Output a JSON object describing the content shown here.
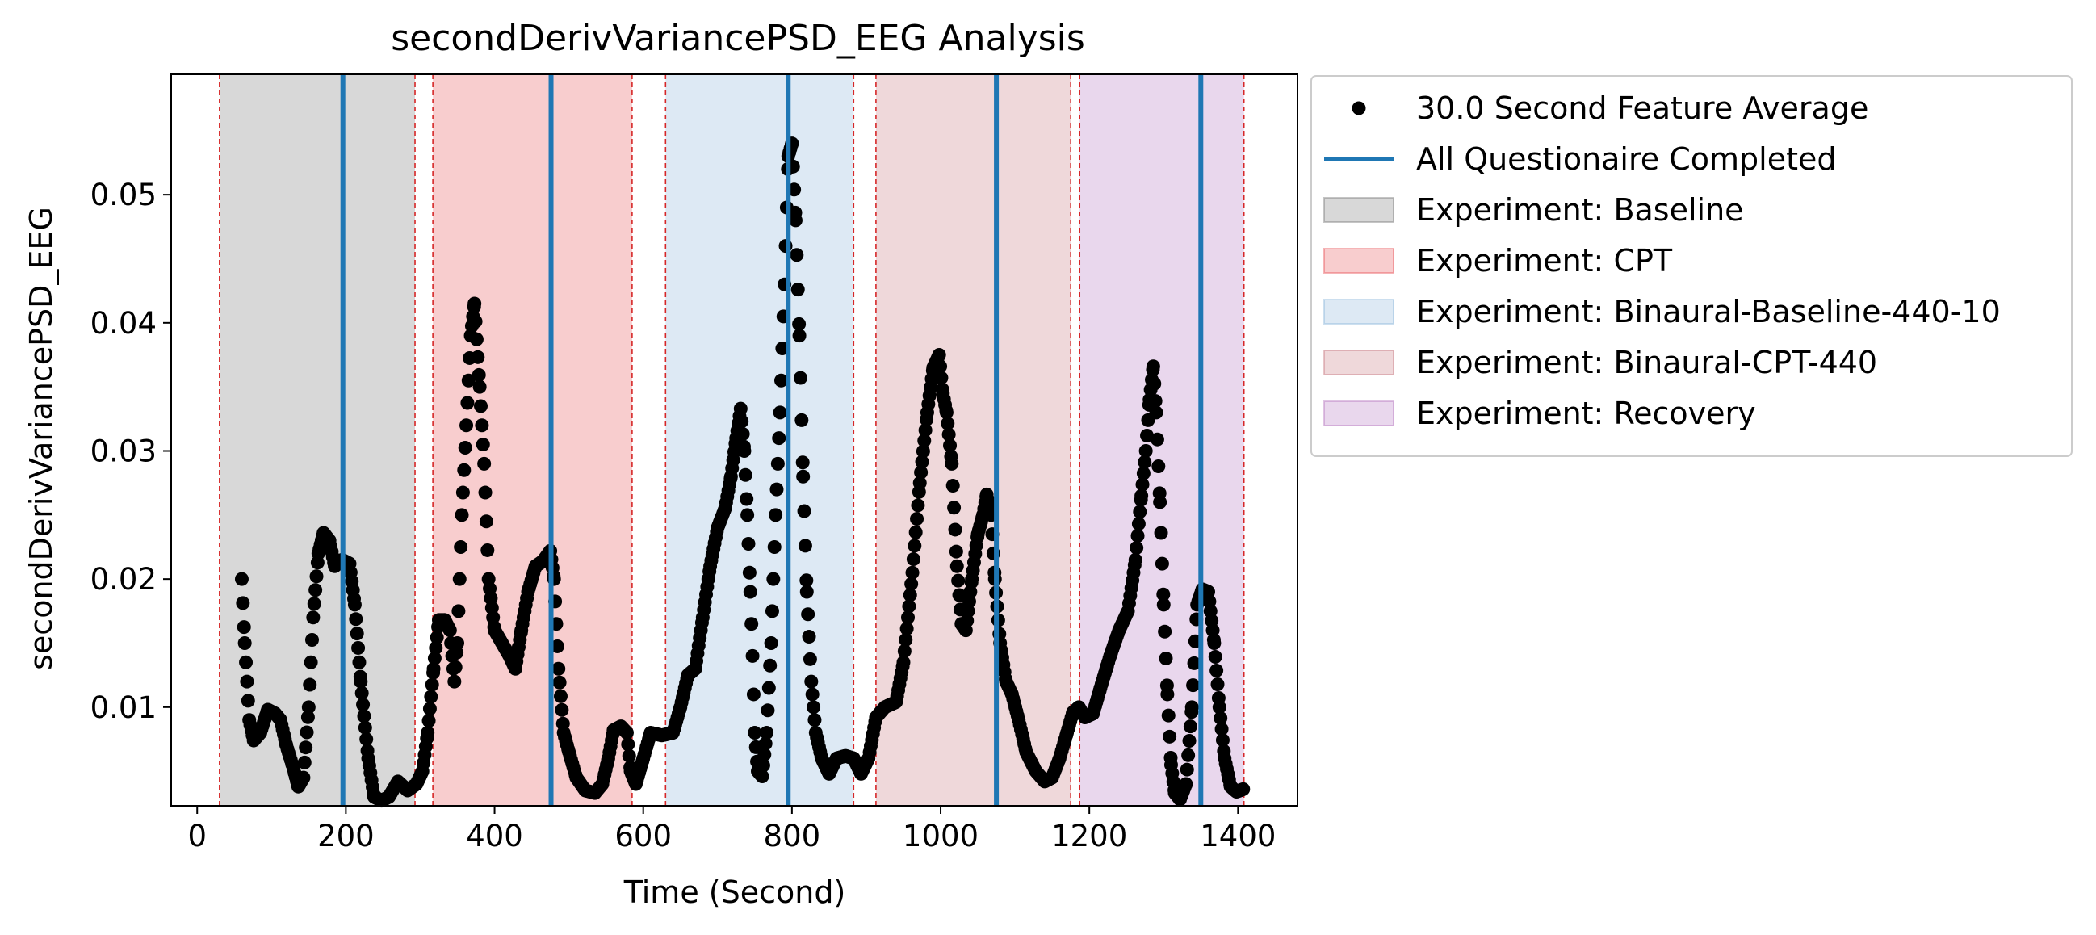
{
  "chart_data": {
    "type": "scatter",
    "title": "secondDerivVariancePSD_EEG Analysis",
    "xlabel": "Time (Second)",
    "ylabel": "secondDerivVariancePSD_EEG",
    "xlim": [
      -35,
      1480
    ],
    "ylim": [
      0.0023,
      0.0594
    ],
    "x_ticks": [
      0,
      200,
      400,
      600,
      800,
      1000,
      1200,
      1400
    ],
    "x_tick_labels": [
      "0",
      "200",
      "400",
      "600",
      "800",
      "1000",
      "1200",
      "1400"
    ],
    "y_ticks": [
      0.01,
      0.02,
      0.03,
      0.04,
      0.05
    ],
    "y_tick_labels": [
      "0.01",
      "0.02",
      "0.03",
      "0.04",
      "0.05"
    ],
    "grid": false,
    "legend_placement": "outside-upper-right",
    "legend": [
      {
        "label": "30.0 Second Feature Average",
        "kind": "marker",
        "color": "#000000"
      },
      {
        "label": "All Questionaire Completed",
        "kind": "line",
        "color": "#1f77b4"
      },
      {
        "label": "Experiment: Baseline",
        "kind": "patch",
        "color": "#7f7f7f"
      },
      {
        "label": "Experiment: CPT",
        "kind": "patch",
        "color": "#e8585d"
      },
      {
        "label": "Experiment: Binaural-Baseline-440-10",
        "kind": "patch",
        "color": "#8fb7dc"
      },
      {
        "label": "Experiment: Binaural-CPT-440",
        "kind": "patch",
        "color": "#c97f85"
      },
      {
        "label": "Experiment: Recovery",
        "kind": "patch",
        "color": "#b779c2"
      }
    ],
    "phases": [
      {
        "name": "Experiment: Baseline",
        "start": 30,
        "end": 293,
        "color": "#7f7f7f"
      },
      {
        "name": "Experiment: CPT",
        "start": 317,
        "end": 585,
        "color": "#e8585d"
      },
      {
        "name": "Experiment: Binaural-Baseline-440-10",
        "start": 630,
        "end": 883,
        "color": "#8fb7dc"
      },
      {
        "name": "Experiment: Binaural-CPT-440",
        "start": 913,
        "end": 1175,
        "color": "#c97f85"
      },
      {
        "name": "Experiment: Recovery",
        "start": 1187,
        "end": 1408,
        "color": "#b779c2"
      }
    ],
    "questionnaire_completed": [
      196,
      476,
      795,
      1075,
      1350
    ],
    "feature_average_anchors": [
      [
        60,
        0.02
      ],
      [
        64,
        0.015
      ],
      [
        70,
        0.009
      ],
      [
        76,
        0.0074
      ],
      [
        85,
        0.008
      ],
      [
        95,
        0.0098
      ],
      [
        105,
        0.0095
      ],
      [
        112,
        0.009
      ],
      [
        120,
        0.007
      ],
      [
        128,
        0.0055
      ],
      [
        136,
        0.0038
      ],
      [
        143,
        0.0045
      ],
      [
        150,
        0.01
      ],
      [
        156,
        0.017
      ],
      [
        163,
        0.022
      ],
      [
        170,
        0.0236
      ],
      [
        178,
        0.023
      ],
      [
        185,
        0.021
      ],
      [
        195,
        0.0215
      ],
      [
        205,
        0.0212
      ],
      [
        212,
        0.018
      ],
      [
        220,
        0.012
      ],
      [
        230,
        0.006
      ],
      [
        238,
        0.003
      ],
      [
        248,
        0.0027
      ],
      [
        258,
        0.003
      ],
      [
        270,
        0.0042
      ],
      [
        283,
        0.0035
      ],
      [
        295,
        0.004
      ],
      [
        303,
        0.005
      ],
      [
        310,
        0.008
      ],
      [
        318,
        0.013
      ],
      [
        325,
        0.0168
      ],
      [
        333,
        0.0168
      ],
      [
        340,
        0.016
      ],
      [
        346,
        0.012
      ],
      [
        350,
        0.015
      ],
      [
        356,
        0.025
      ],
      [
        362,
        0.032
      ],
      [
        368,
        0.039
      ],
      [
        373,
        0.0415
      ],
      [
        380,
        0.035
      ],
      [
        386,
        0.029
      ],
      [
        392,
        0.02
      ],
      [
        400,
        0.016
      ],
      [
        410,
        0.015
      ],
      [
        420,
        0.014
      ],
      [
        428,
        0.013
      ],
      [
        436,
        0.016
      ],
      [
        445,
        0.019
      ],
      [
        455,
        0.021
      ],
      [
        465,
        0.0214
      ],
      [
        475,
        0.0222
      ],
      [
        480,
        0.02
      ],
      [
        486,
        0.013
      ],
      [
        493,
        0.008
      ],
      [
        500,
        0.0065
      ],
      [
        510,
        0.0045
      ],
      [
        522,
        0.0035
      ],
      [
        535,
        0.0033
      ],
      [
        545,
        0.004
      ],
      [
        553,
        0.006
      ],
      [
        560,
        0.0082
      ],
      [
        570,
        0.0085
      ],
      [
        578,
        0.008
      ],
      [
        583,
        0.005
      ],
      [
        590,
        0.004
      ],
      [
        600,
        0.006
      ],
      [
        610,
        0.008
      ],
      [
        625,
        0.0078
      ],
      [
        640,
        0.008
      ],
      [
        650,
        0.01
      ],
      [
        660,
        0.0125
      ],
      [
        670,
        0.013
      ],
      [
        680,
        0.017
      ],
      [
        690,
        0.021
      ],
      [
        700,
        0.024
      ],
      [
        710,
        0.0255
      ],
      [
        718,
        0.028
      ],
      [
        725,
        0.031
      ],
      [
        731,
        0.0333
      ],
      [
        736,
        0.03
      ],
      [
        740,
        0.025
      ],
      [
        744,
        0.019
      ],
      [
        747,
        0.014
      ],
      [
        750,
        0.008
      ],
      [
        754,
        0.005
      ],
      [
        760,
        0.0046
      ],
      [
        766,
        0.008
      ],
      [
        772,
        0.015
      ],
      [
        778,
        0.025
      ],
      [
        784,
        0.033
      ],
      [
        790,
        0.043
      ],
      [
        795,
        0.053
      ],
      [
        800,
        0.054
      ],
      [
        805,
        0.048
      ],
      [
        810,
        0.039
      ],
      [
        815,
        0.028
      ],
      [
        820,
        0.019
      ],
      [
        826,
        0.012
      ],
      [
        832,
        0.008
      ],
      [
        840,
        0.006
      ],
      [
        850,
        0.0048
      ],
      [
        860,
        0.006
      ],
      [
        872,
        0.0062
      ],
      [
        883,
        0.006
      ],
      [
        893,
        0.0048
      ],
      [
        903,
        0.006
      ],
      [
        913,
        0.0092
      ],
      [
        925,
        0.01
      ],
      [
        940,
        0.0104
      ],
      [
        950,
        0.0135
      ],
      [
        962,
        0.0205
      ],
      [
        972,
        0.0275
      ],
      [
        982,
        0.033
      ],
      [
        990,
        0.0365
      ],
      [
        998,
        0.0375
      ],
      [
        1003,
        0.0345
      ],
      [
        1008,
        0.033
      ],
      [
        1015,
        0.029
      ],
      [
        1022,
        0.021
      ],
      [
        1028,
        0.0165
      ],
      [
        1034,
        0.016
      ],
      [
        1042,
        0.02
      ],
      [
        1050,
        0.0235
      ],
      [
        1057,
        0.025
      ],
      [
        1062,
        0.0266
      ],
      [
        1068,
        0.025
      ],
      [
        1073,
        0.02
      ],
      [
        1080,
        0.015
      ],
      [
        1088,
        0.012
      ],
      [
        1096,
        0.011
      ],
      [
        1105,
        0.009
      ],
      [
        1115,
        0.0065
      ],
      [
        1128,
        0.005
      ],
      [
        1140,
        0.0042
      ],
      [
        1150,
        0.0045
      ],
      [
        1160,
        0.006
      ],
      [
        1170,
        0.008
      ],
      [
        1178,
        0.0096
      ],
      [
        1186,
        0.01
      ],
      [
        1194,
        0.0092
      ],
      [
        1205,
        0.0095
      ],
      [
        1215,
        0.0115
      ],
      [
        1228,
        0.014
      ],
      [
        1240,
        0.016
      ],
      [
        1252,
        0.0175
      ],
      [
        1262,
        0.0215
      ],
      [
        1270,
        0.0265
      ],
      [
        1276,
        0.03
      ],
      [
        1281,
        0.034
      ],
      [
        1286,
        0.0366
      ],
      [
        1290,
        0.033
      ],
      [
        1295,
        0.026
      ],
      [
        1300,
        0.018
      ],
      [
        1305,
        0.011
      ],
      [
        1310,
        0.0055
      ],
      [
        1315,
        0.0033
      ],
      [
        1322,
        0.0028
      ],
      [
        1330,
        0.004
      ],
      [
        1338,
        0.01
      ],
      [
        1345,
        0.018
      ],
      [
        1352,
        0.0192
      ],
      [
        1360,
        0.019
      ],
      [
        1368,
        0.015
      ],
      [
        1375,
        0.01
      ],
      [
        1382,
        0.006
      ],
      [
        1390,
        0.0038
      ],
      [
        1398,
        0.0034
      ],
      [
        1407,
        0.0036
      ]
    ]
  }
}
